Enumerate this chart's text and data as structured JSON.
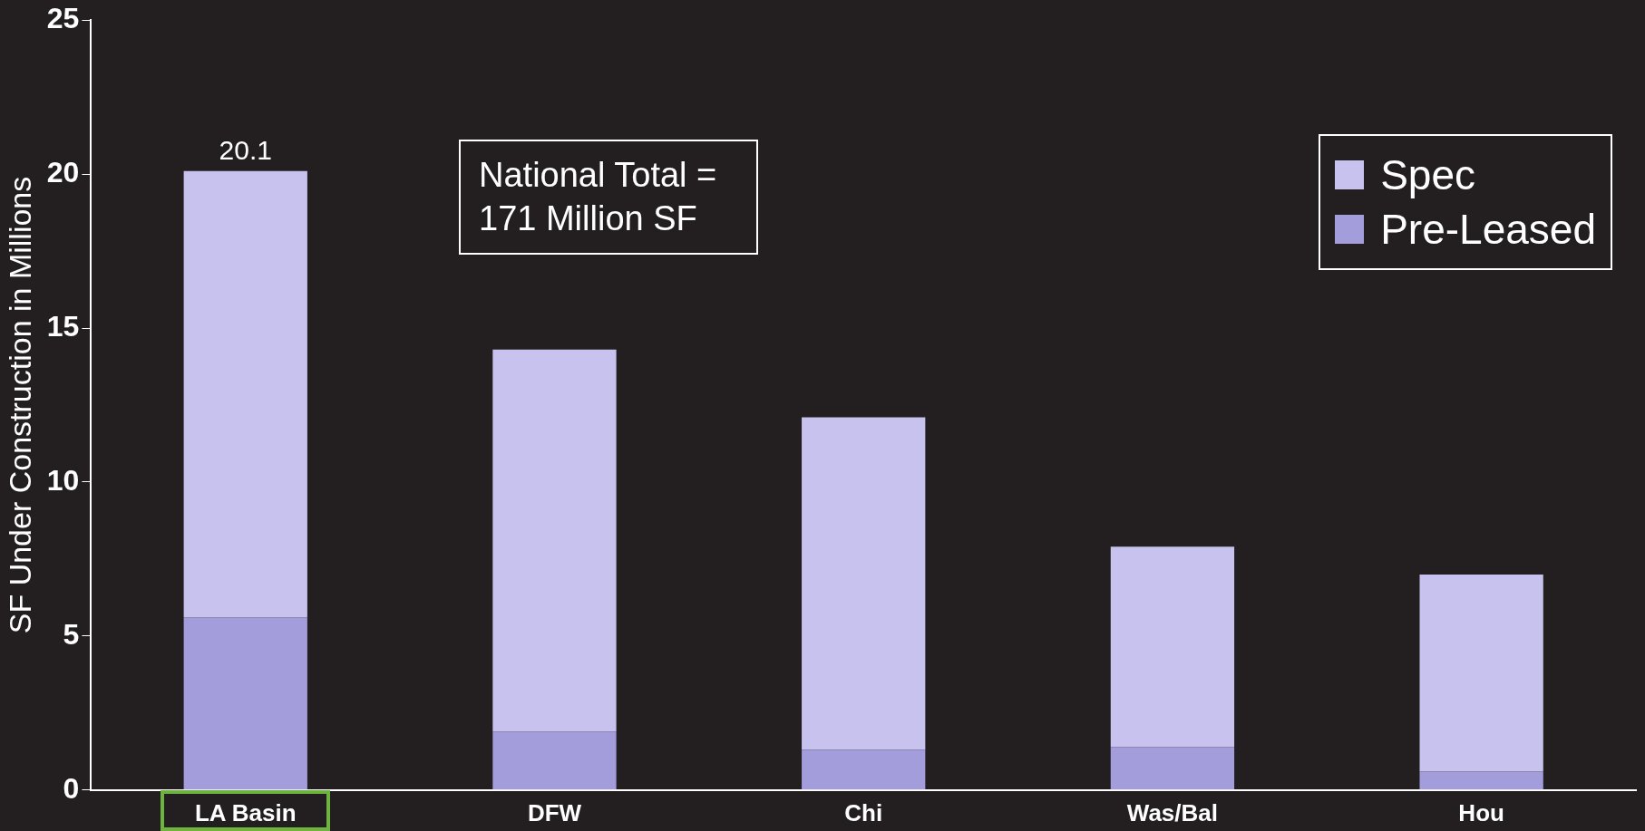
{
  "chart_data": {
    "type": "bar",
    "stacked": true,
    "ylabel": "SF Under Construction in Millions",
    "categories": [
      "LA Basin",
      "DFW",
      "Chi",
      "Was/Bal",
      "Hou"
    ],
    "series": [
      {
        "name": "Pre-Leased",
        "color": "#a49ddb",
        "values": [
          5.6,
          1.9,
          1.3,
          1.4,
          0.6
        ]
      },
      {
        "name": "Spec",
        "color": "#c8c3ee",
        "values": [
          14.5,
          12.4,
          10.8,
          6.5,
          6.4
        ]
      }
    ],
    "totals": [
      "20.1",
      null,
      null,
      null,
      null
    ],
    "ylim": [
      0,
      25
    ],
    "yticks": [
      0,
      5,
      10,
      15,
      20,
      25
    ],
    "grid": false,
    "legend": "top right",
    "annotations": [
      "National Total = 171 Million SF"
    ]
  }
}
